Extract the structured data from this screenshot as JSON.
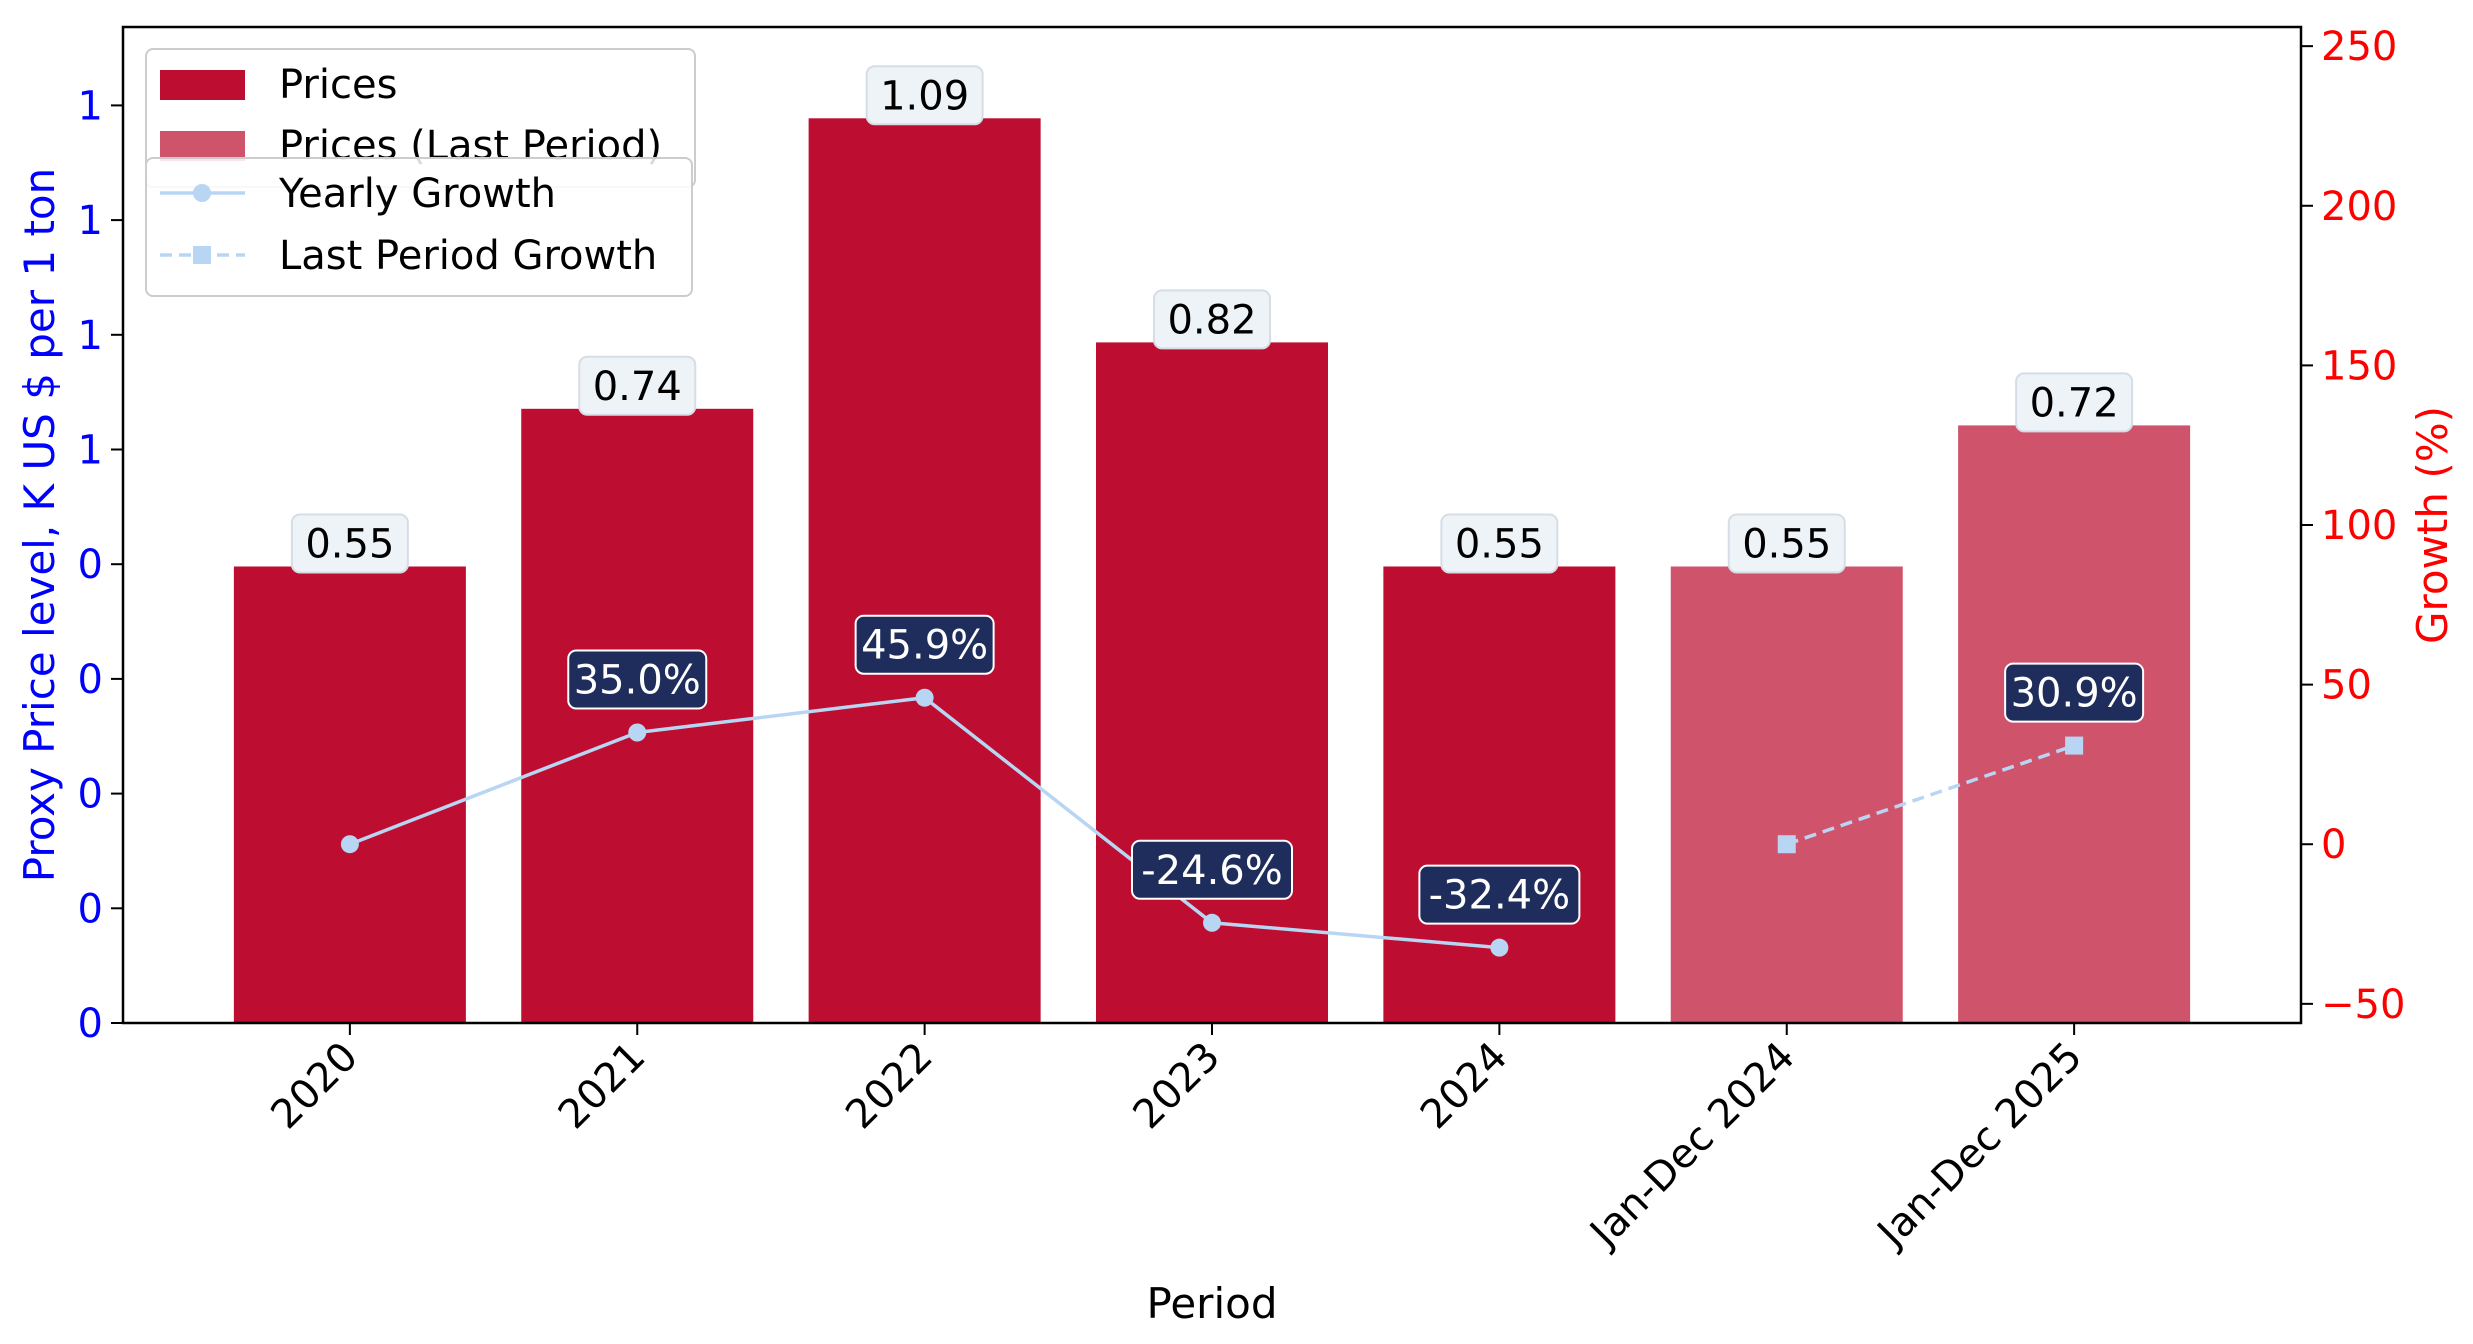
{
  "colors": {
    "bar_prices": "#bd0d30",
    "bar_last_period": "#d0536c",
    "growth_line": "#b8d6f4",
    "left_axis": "#0000ff",
    "right_axis": "#ff0000",
    "price_label_bg": "#eef3f8",
    "growth_label_bg": "#1f2d5c"
  },
  "chart_data": {
    "type": "bar",
    "title": "",
    "xlabel": "Period",
    "ylabel_left": "Proxy Price level, K US $ per 1 ton",
    "ylabel_right": "Growth (%)",
    "categories": [
      "2020",
      "2021",
      "2022",
      "2023",
      "2024",
      "Jan-Dec 2024",
      "Jan-Dec 2025"
    ],
    "left_ylim": [
      0,
      1.2
    ],
    "left_tick_labels": [
      "0",
      "0",
      "0",
      "0",
      "0",
      "1",
      "1",
      "1",
      "1"
    ],
    "right_ylim": [
      -56,
      256
    ],
    "right_ticks": [
      "−50",
      "0",
      "50",
      "100",
      "150",
      "200",
      "250"
    ],
    "right_tick_values": [
      -50,
      0,
      50,
      100,
      150,
      200,
      250
    ],
    "series": [
      {
        "name": "Prices",
        "kind": "bar",
        "values": [
          0.55,
          0.74,
          1.09,
          0.82,
          0.55,
          null,
          null
        ],
        "labels": [
          "0.55",
          "0.74",
          "1.09",
          "0.82",
          "0.55",
          "",
          ""
        ]
      },
      {
        "name": "Prices (Last Period)",
        "kind": "bar",
        "values": [
          null,
          null,
          null,
          null,
          null,
          0.55,
          0.72
        ],
        "labels": [
          "",
          "",
          "",
          "",
          "",
          "0.55",
          "0.72"
        ]
      },
      {
        "name": "Yearly Growth",
        "kind": "line",
        "axis": "right",
        "values": [
          0,
          35.0,
          45.9,
          -24.6,
          -32.4,
          null,
          null
        ],
        "labels": [
          "",
          "35.0%",
          "45.9%",
          "-24.6%",
          "-32.4%",
          "",
          ""
        ]
      },
      {
        "name": "Last Period Growth",
        "kind": "line-dashed",
        "axis": "right",
        "values": [
          null,
          null,
          null,
          null,
          null,
          0,
          30.9
        ],
        "labels": [
          "",
          "",
          "",
          "",
          "",
          "",
          "30.9%"
        ]
      }
    ],
    "legend_position": "top-left",
    "grid": false
  }
}
